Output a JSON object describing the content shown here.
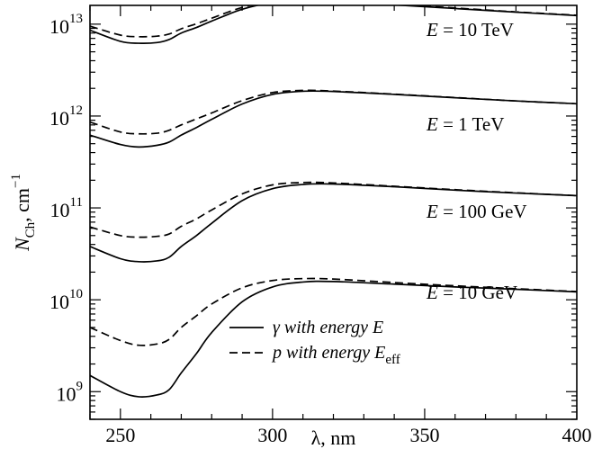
{
  "chart_data": {
    "type": "line",
    "x_axis": {
      "label": "λ, nm",
      "range": [
        240,
        400
      ],
      "ticks": [
        250,
        300,
        350,
        400
      ],
      "tick_labels": [
        "250",
        "300",
        "350",
        "400"
      ]
    },
    "y_axis": {
      "label": "N_Ch, cm^-1",
      "label_base": "N",
      "label_sub": "Ch",
      "label_unit": ", cm",
      "label_exp": "−1",
      "scale": "log",
      "range": [
        500000000.0,
        16000000000000.0
      ],
      "ticks": [
        1000000000.0,
        10000000000.0,
        100000000000.0,
        1000000000000.0,
        10000000000000.0
      ],
      "tick_labels": [
        {
          "base": "10",
          "exp": "9"
        },
        {
          "base": "10",
          "exp": "10"
        },
        {
          "base": "10",
          "exp": "11"
        },
        {
          "base": "10",
          "exp": "12"
        },
        {
          "base": "10",
          "exp": "13"
        }
      ]
    },
    "x": [
      240,
      250,
      256,
      262,
      266,
      270,
      275,
      280,
      290,
      300,
      310,
      320,
      340,
      360,
      380,
      400
    ],
    "groups": [
      {
        "label": "E = 10 TeV",
        "label_var": "E",
        "label_rest": " = 10 TeV",
        "gamma": [
          8600000000000.0,
          6500000000000.0,
          6200000000000.0,
          6300000000000.0,
          6800000000000.0,
          8000000000000.0,
          9200000000000.0,
          10800000000000.0,
          14500000000000.0,
          17200000000000.0,
          17800000000000.0,
          17600000000000.0,
          16200000000000.0,
          14800000000000.0,
          13500000000000.0,
          12400000000000.0
        ],
        "proton": [
          9500000000000.0,
          7600000000000.0,
          7300000000000.0,
          7400000000000.0,
          7800000000000.0,
          8900000000000.0,
          10100000000000.0,
          11600000000000.0,
          15200000000000.0,
          17800000000000.0,
          18200000000000.0,
          17900000000000.0,
          16400000000000.0,
          15000000000000.0,
          13600000000000.0,
          12500000000000.0
        ]
      },
      {
        "label": "E = 1 TeV",
        "label_var": "E",
        "label_rest": " = 1 TeV",
        "gamma": [
          620000000000.0,
          490000000000.0,
          460000000000.0,
          480000000000.0,
          520000000000.0,
          620000000000.0,
          750000000000.0,
          920000000000.0,
          1350000000000.0,
          1720000000000.0,
          1860000000000.0,
          1850000000000.0,
          1720000000000.0,
          1580000000000.0,
          1460000000000.0,
          1360000000000.0
        ],
        "proton": [
          860000000000.0,
          670000000000.0,
          640000000000.0,
          650000000000.0,
          700000000000.0,
          800000000000.0,
          930000000000.0,
          1080000000000.0,
          1470000000000.0,
          1800000000000.0,
          1900000000000.0,
          1870000000000.0,
          1730000000000.0,
          1590000000000.0,
          1460000000000.0,
          1360000000000.0
        ]
      },
      {
        "label": "E = 100 GeV",
        "label_var": "E",
        "label_rest": " = 100 GeV",
        "gamma": [
          38000000000.0,
          28000000000.0,
          26000000000.0,
          26500000000.0,
          29000000000.0,
          38000000000.0,
          50000000000.0,
          68000000000.0,
          120000000000.0,
          162000000000.0,
          180000000000.0,
          182000000000.0,
          170000000000.0,
          156000000000.0,
          145000000000.0,
          136000000000.0
        ],
        "proton": [
          62000000000.0,
          50000000000.0,
          48000000000.0,
          49000000000.0,
          52000000000.0,
          63000000000.0,
          76000000000.0,
          95000000000.0,
          142000000000.0,
          178000000000.0,
          189000000000.0,
          187000000000.0,
          172000000000.0,
          158000000000.0,
          146000000000.0,
          136000000000.0
        ]
      },
      {
        "label": "E = 10 GeV",
        "label_var": "E",
        "label_rest": " = 10 GeV",
        "gamma": [
          1500000000.0,
          1000000000.0,
          880000000.0,
          920000000.0,
          1050000000.0,
          1600000000.0,
          2600000000.0,
          4400000000.0,
          9500000000.0,
          13800000000.0,
          15600000000.0,
          15800000000.0,
          14800000000.0,
          13800000000.0,
          13000000000.0,
          12200000000.0
        ],
        "proton": [
          5000000000.0,
          3600000000.0,
          3200000000.0,
          3300000000.0,
          3700000000.0,
          5000000000.0,
          6700000000.0,
          9000000000.0,
          13500000000.0,
          16200000000.0,
          17000000000.0,
          16800000000.0,
          15400000000.0,
          14200000000.0,
          13200000000.0,
          12300000000.0
        ]
      }
    ],
    "legend": [
      {
        "style": "solid",
        "symbol": "γ",
        "text": " with energy ",
        "var": "E",
        "sub": ""
      },
      {
        "style": "dashed",
        "symbol": "p",
        "text": " with energy ",
        "var": "E",
        "sub": "eff"
      }
    ],
    "grid": false,
    "legend_position": "bottom-center",
    "colors": {
      "line": "#000000",
      "background": "#ffffff"
    }
  }
}
